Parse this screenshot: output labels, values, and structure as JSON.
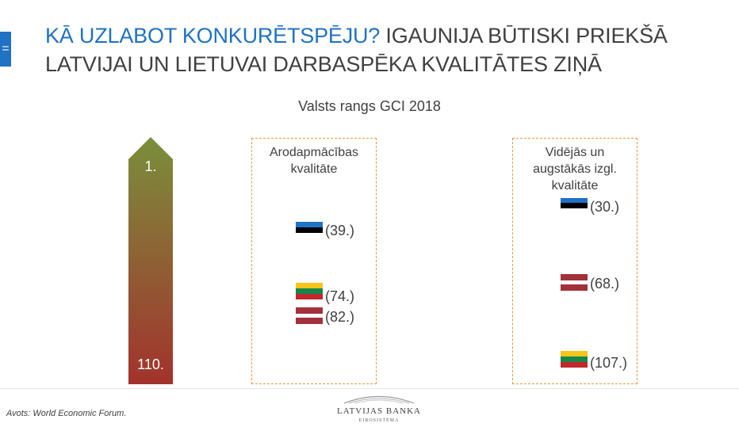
{
  "menu": {
    "icon": "hamburger-icon",
    "glyph": "="
  },
  "title": {
    "highlight": "KĀ UZLABOT KONKURĒTSPĒJU?",
    "rest": " IGAUNIJA BŪTISKI PRIEKŠĀ LATVIJAI UN LIETUVAI DARBASPĒKA KVALITĀTES ZIŅĀ",
    "highlight_color": "#1f72c4"
  },
  "subtitle": "Valsts rangs GCI 2018",
  "scale": {
    "top_label": "1.",
    "bottom_label": "110.",
    "top_color": "#7a8f3c",
    "bottom_color": "#a3322c"
  },
  "vocational": {
    "label": "Arodapmācības kvalitāte",
    "entries": [
      {
        "country": "estonia-flag",
        "rank": "(39.)"
      },
      {
        "country": "lithuania-flag",
        "rank": "(74.)"
      },
      {
        "country": "latvia-flag",
        "rank": "(82.)"
      }
    ]
  },
  "education": {
    "label": "Vidējās un augstākās izgl. kvalitāte",
    "entries": [
      {
        "country": "estonia-flag",
        "rank": "(30.)"
      },
      {
        "country": "latvia-flag",
        "rank": "(68.)"
      },
      {
        "country": "lithuania-flag",
        "rank": "(107.)"
      }
    ]
  },
  "source": "Avots: World Economic Forum.",
  "logo": {
    "name": "LATVIJAS BANKA",
    "sub": "EIROSISTĒMA"
  },
  "colors": {
    "estonia": [
      "#1f72c4",
      "#000000",
      "#ffffff"
    ],
    "latvia": [
      "#a3313b",
      "#ffffff",
      "#a3313b"
    ],
    "lithuania": [
      "#f7c519",
      "#18864b",
      "#c1272d"
    ],
    "box_border": "#e39a47"
  }
}
